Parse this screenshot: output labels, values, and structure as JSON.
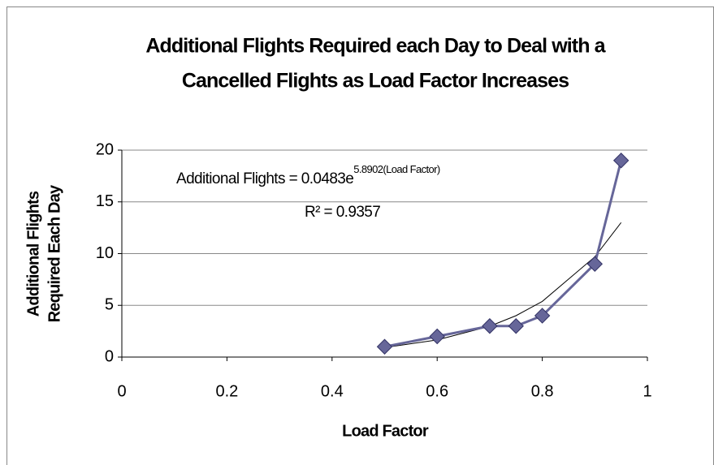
{
  "chart_data": {
    "type": "scatter",
    "title": [
      "Additional Flights Required each Day to Deal with a",
      "Cancelled Flights as Load Factor Increases"
    ],
    "x_label": "Load Factor",
    "y_label": [
      "Additional Flights",
      "Required Each Day"
    ],
    "x": [
      0.5,
      0.6,
      0.7,
      0.75,
      0.8,
      0.9,
      0.95
    ],
    "series": [
      {
        "color": "#666699",
        "values": [
          1,
          2,
          3,
          3,
          4,
          9,
          19
        ]
      }
    ],
    "trendline": {
      "color": "#000000",
      "x": [
        0.5,
        0.6,
        0.7,
        0.75,
        0.8,
        0.9,
        0.95
      ],
      "values": [
        0.92,
        1.66,
        2.98,
        4.0,
        5.38,
        9.69,
        13.0
      ]
    },
    "equation": {
      "text": "Additional Flights = 0.0483e",
      "exponent": "5.8902(Load Factor)",
      "r2": "R² = 0.9357"
    },
    "xlim": [
      0,
      1
    ],
    "xticks": [
      0,
      0.2,
      0.4,
      0.6,
      0.8,
      1
    ],
    "ylim": [
      0,
      20
    ],
    "yticks": [
      0,
      5,
      10,
      15,
      20
    ],
    "grid": true
  }
}
